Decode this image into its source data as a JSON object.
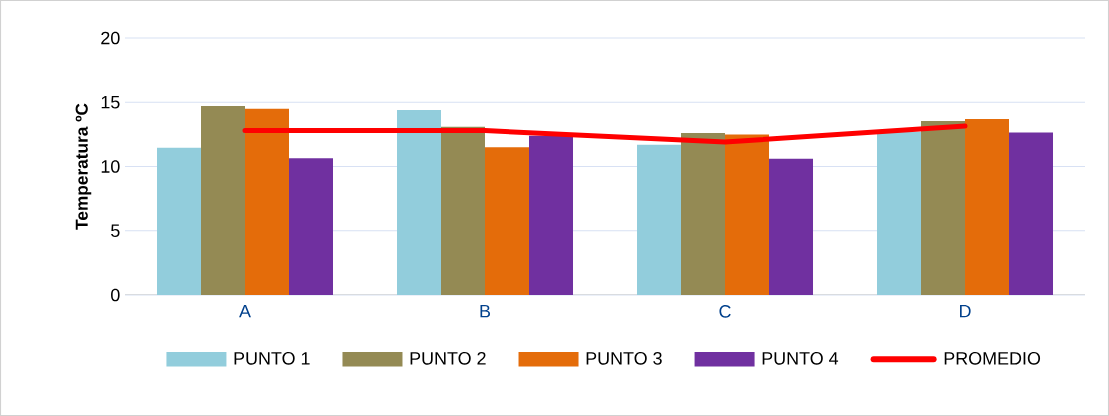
{
  "chart_data": {
    "type": "bar",
    "ylabel": "Temperatura ºC",
    "categories": [
      "A",
      "B",
      "C",
      "D"
    ],
    "series": [
      {
        "name": "PUNTO 1",
        "color": "#92cddc",
        "values": [
          11.45,
          14.4,
          11.7,
          12.7
        ]
      },
      {
        "name": "PUNTO 2",
        "color": "#948a54",
        "values": [
          14.7,
          13.1,
          12.6,
          13.55
        ]
      },
      {
        "name": "PUNTO 3",
        "color": "#e46c0a",
        "values": [
          14.5,
          11.5,
          12.5,
          13.7
        ]
      },
      {
        "name": "PUNTO 4",
        "color": "#7030a0",
        "values": [
          10.65,
          12.4,
          10.6,
          12.65
        ]
      },
      {
        "name": "PROMEDIO",
        "type": "line",
        "color": "#ff0000",
        "values": [
          12.8,
          12.8,
          11.9,
          13.15
        ]
      }
    ],
    "ylim": [
      0,
      20
    ],
    "yticks": [
      0,
      5,
      10,
      15,
      20
    ],
    "grid": "y",
    "legend": "bottom"
  }
}
